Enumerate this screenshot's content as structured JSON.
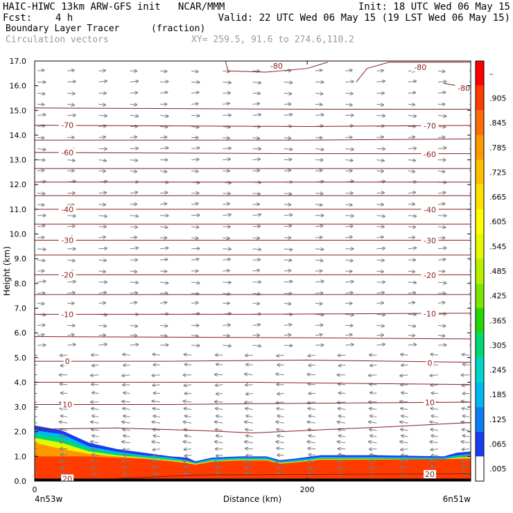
{
  "header": {
    "line1_left": "HAIC-HIWC 13km ARW-GFS init   NCAR/MMM",
    "line1_right": "Init: 18 UTC Wed 06 May 15",
    "line2_left": "Fcst:    4 h",
    "line2_right": "Valid: 22 UTC Wed 06 May 15 (19 LST Wed 06 May 15)",
    "field_name": "Boundary Layer Tracer",
    "field_units": "(fraction)",
    "vector_label": "Circulation vectors",
    "xy_label": "XY= 259.5, 91.6 to 274.6,110.2"
  },
  "colors": {
    "contour": "#8b1a1a",
    "vector": "#7a7a7a",
    "frame": "#000000",
    "grid": "#e6e6e6"
  },
  "chart_data": {
    "type": "heatmap",
    "ylabel": "Height (km)",
    "xlabel": "Distance (km)",
    "x_left_label": "4n53w",
    "x_right_label": "6n51w",
    "ylim": [
      0,
      17
    ],
    "yticks": [
      "0.0",
      "1.0",
      "2.0",
      "3.0",
      "4.0",
      "5.0",
      "6.0",
      "7.0",
      "8.0",
      "9.0",
      "10.0",
      "11.0",
      "12.0",
      "13.0",
      "14.0",
      "15.0",
      "16.0",
      "17.0"
    ],
    "xlim": [
      0,
      320
    ],
    "xticks": [
      {
        "value": 0,
        "label": "0"
      },
      {
        "value": 200,
        "label": "200"
      }
    ],
    "colorbar": {
      "labels": [
        ".005",
        ".065",
        ".125",
        ".185",
        ".245",
        ".305",
        ".365",
        ".425",
        ".485",
        ".545",
        ".605",
        ".665",
        ".725",
        ".785",
        ".845",
        ".905",
        "–"
      ],
      "colors": [
        "#ffffff",
        "#1a3cf0",
        "#0a7ef5",
        "#00b7f0",
        "#00d6c8",
        "#00d873",
        "#22d800",
        "#7de600",
        "#b8f000",
        "#e6f800",
        "#ffff00",
        "#ffe000",
        "#ffc000",
        "#ff9800",
        "#ff6e00",
        "#ff3c00",
        "#ff0000"
      ]
    },
    "tracer_layers": [
      {
        "level": 0.065,
        "top": [
          [
            0,
            2.25
          ],
          [
            20,
            2.05
          ],
          [
            40,
            1.55
          ],
          [
            60,
            1.3
          ],
          [
            80,
            1.15
          ],
          [
            100,
            1.0
          ],
          [
            112,
            0.95
          ],
          [
            118,
            0.8
          ],
          [
            130,
            0.95
          ],
          [
            150,
            1.0
          ],
          [
            170,
            1.0
          ],
          [
            180,
            0.85
          ],
          [
            190,
            0.9
          ],
          [
            210,
            1.05
          ],
          [
            250,
            1.05
          ],
          [
            300,
            1.0
          ],
          [
            310,
            1.15
          ],
          [
            330,
            1.25
          ]
        ]
      },
      {
        "level": 0.185,
        "top": [
          [
            0,
            2.05
          ],
          [
            20,
            1.9
          ],
          [
            40,
            1.4
          ],
          [
            60,
            1.2
          ],
          [
            80,
            1.05
          ],
          [
            100,
            0.95
          ],
          [
            112,
            0.85
          ],
          [
            118,
            0.75
          ],
          [
            130,
            0.9
          ],
          [
            150,
            0.95
          ],
          [
            170,
            0.95
          ],
          [
            180,
            0.8
          ],
          [
            190,
            0.85
          ],
          [
            210,
            0.98
          ],
          [
            250,
            0.98
          ],
          [
            300,
            0.95
          ],
          [
            310,
            1.05
          ],
          [
            330,
            1.15
          ]
        ]
      },
      {
        "level": 0.305,
        "top": [
          [
            0,
            1.9
          ],
          [
            20,
            1.75
          ],
          [
            40,
            1.3
          ],
          [
            60,
            1.12
          ],
          [
            80,
            1.0
          ],
          [
            100,
            0.9
          ],
          [
            112,
            0.8
          ],
          [
            118,
            0.72
          ],
          [
            130,
            0.85
          ],
          [
            150,
            0.9
          ],
          [
            170,
            0.9
          ],
          [
            180,
            0.76
          ],
          [
            190,
            0.8
          ],
          [
            210,
            0.93
          ],
          [
            250,
            0.93
          ],
          [
            300,
            0.9
          ],
          [
            310,
            1.0
          ],
          [
            330,
            1.08
          ]
        ]
      },
      {
        "level": 0.545,
        "top": [
          [
            0,
            1.75
          ],
          [
            20,
            1.55
          ],
          [
            40,
            1.2
          ],
          [
            60,
            1.05
          ],
          [
            80,
            0.95
          ],
          [
            100,
            0.85
          ],
          [
            112,
            0.78
          ],
          [
            118,
            0.7
          ],
          [
            130,
            0.82
          ],
          [
            150,
            0.87
          ],
          [
            170,
            0.87
          ],
          [
            180,
            0.74
          ],
          [
            190,
            0.78
          ],
          [
            210,
            0.9
          ],
          [
            250,
            0.9
          ],
          [
            300,
            0.88
          ],
          [
            310,
            0.95
          ],
          [
            330,
            1.02
          ]
        ]
      },
      {
        "level": 0.785,
        "top": [
          [
            0,
            1.55
          ],
          [
            20,
            1.3
          ],
          [
            40,
            1.1
          ],
          [
            60,
            1.0
          ],
          [
            80,
            0.92
          ],
          [
            100,
            0.82
          ],
          [
            112,
            0.74
          ],
          [
            118,
            0.68
          ],
          [
            130,
            0.8
          ],
          [
            150,
            0.85
          ],
          [
            170,
            0.85
          ],
          [
            180,
            0.72
          ],
          [
            190,
            0.76
          ],
          [
            210,
            0.88
          ],
          [
            250,
            0.88
          ],
          [
            300,
            0.86
          ],
          [
            310,
            0.92
          ],
          [
            330,
            0.98
          ]
        ]
      },
      {
        "level": 0.905,
        "top": [
          [
            0,
            1.0
          ],
          [
            40,
            1.0
          ],
          [
            80,
            0.9
          ],
          [
            100,
            0.8
          ],
          [
            112,
            0.72
          ],
          [
            118,
            0.66
          ],
          [
            130,
            0.78
          ],
          [
            150,
            0.83
          ],
          [
            170,
            0.83
          ],
          [
            180,
            0.7
          ],
          [
            190,
            0.74
          ],
          [
            210,
            0.86
          ],
          [
            330,
            0.9
          ]
        ]
      }
    ],
    "terrain_km": 0.1,
    "contour_interval_C": 10,
    "contours": [
      {
        "label": "20",
        "pts": [
          [
            0,
            0.1
          ],
          [
            60,
            0.1
          ],
          [
            120,
            0.25
          ],
          [
            330,
            0.3
          ]
        ]
      },
      {
        "label": "",
        "pts": [
          [
            0,
            2.1
          ],
          [
            60,
            2.15
          ],
          [
            120,
            2.05
          ],
          [
            160,
            1.95
          ],
          [
            200,
            2.05
          ],
          [
            260,
            2.2
          ],
          [
            330,
            2.4
          ]
        ]
      },
      {
        "label": "10",
        "pts": [
          [
            0,
            3.1
          ],
          [
            100,
            3.1
          ],
          [
            200,
            3.15
          ],
          [
            330,
            3.2
          ]
        ]
      },
      {
        "label": "",
        "pts": [
          [
            0,
            4.0
          ],
          [
            160,
            4.0
          ],
          [
            330,
            3.9
          ]
        ]
      },
      {
        "label": "0",
        "pts": [
          [
            0,
            4.85
          ],
          [
            100,
            4.85
          ],
          [
            200,
            4.9
          ],
          [
            330,
            4.8
          ]
        ]
      },
      {
        "label": "",
        "pts": [
          [
            0,
            5.85
          ],
          [
            200,
            5.8
          ],
          [
            330,
            5.75
          ]
        ]
      },
      {
        "label": "-10",
        "pts": [
          [
            0,
            6.75
          ],
          [
            160,
            6.75
          ],
          [
            330,
            6.8
          ]
        ]
      },
      {
        "label": "",
        "pts": [
          [
            0,
            7.55
          ],
          [
            200,
            7.55
          ],
          [
            330,
            7.55
          ]
        ]
      },
      {
        "label": "-20",
        "pts": [
          [
            0,
            8.35
          ],
          [
            200,
            8.35
          ],
          [
            330,
            8.35
          ]
        ]
      },
      {
        "label": "",
        "pts": [
          [
            0,
            9.15
          ],
          [
            200,
            9.15
          ],
          [
            330,
            9.15
          ]
        ]
      },
      {
        "label": "-30",
        "pts": [
          [
            0,
            9.75
          ],
          [
            200,
            9.75
          ],
          [
            330,
            9.75
          ]
        ]
      },
      {
        "label": "",
        "pts": [
          [
            0,
            10.4
          ],
          [
            200,
            10.4
          ],
          [
            330,
            10.4
          ]
        ]
      },
      {
        "label": "-40",
        "pts": [
          [
            0,
            11.0
          ],
          [
            200,
            11.0
          ],
          [
            330,
            11.0
          ]
        ]
      },
      {
        "label": "",
        "pts": [
          [
            0,
            11.55
          ],
          [
            200,
            11.55
          ],
          [
            330,
            11.55
          ]
        ]
      },
      {
        "label": "",
        "pts": [
          [
            0,
            12.1
          ],
          [
            200,
            12.1
          ],
          [
            330,
            12.1
          ]
        ]
      },
      {
        "label": "",
        "pts": [
          [
            0,
            12.65
          ],
          [
            200,
            12.65
          ],
          [
            330,
            12.65
          ]
        ]
      },
      {
        "label": "-60",
        "pts": [
          [
            0,
            13.3
          ],
          [
            200,
            13.25
          ],
          [
            330,
            13.25
          ]
        ]
      },
      {
        "label": "",
        "pts": [
          [
            0,
            13.8
          ],
          [
            200,
            13.8
          ],
          [
            330,
            13.85
          ]
        ]
      },
      {
        "label": "-70",
        "pts": [
          [
            0,
            14.4
          ],
          [
            200,
            14.35
          ],
          [
            330,
            14.4
          ]
        ]
      },
      {
        "label": "",
        "pts": [
          [
            0,
            15.1
          ],
          [
            200,
            15.05
          ],
          [
            330,
            15.05
          ]
        ]
      },
      {
        "label": "-80",
        "pts": [
          [
            236,
            16.15
          ],
          [
            244,
            16.7
          ],
          [
            260,
            16.95
          ],
          [
            300,
            16.95
          ],
          [
            330,
            16.95
          ]
        ]
      },
      {
        "label": "-80",
        "pts": [
          [
            300,
            16.1
          ],
          [
            315,
            15.95
          ],
          [
            330,
            15.95
          ]
        ]
      },
      {
        "label": "-80",
        "pts": [
          [
            140,
            17.0
          ],
          [
            142,
            16.6
          ],
          [
            170,
            16.55
          ],
          [
            200,
            16.7
          ],
          [
            215,
            16.95
          ]
        ]
      }
    ],
    "vector_rows_km": [
      0.3,
      0.55,
      0.8,
      1.05,
      1.3,
      1.55,
      1.8,
      2.05,
      2.35,
      2.6,
      2.9,
      3.2,
      3.55,
      3.9,
      4.3,
      4.7,
      5.1,
      5.5,
      5.9,
      6.3,
      6.75,
      7.2,
      7.6,
      8.05,
      8.5,
      8.95,
      9.4,
      9.85,
      10.3,
      10.75,
      11.2,
      11.65,
      12.1,
      12.55,
      13.0,
      13.45,
      13.9,
      14.35,
      14.8,
      15.25,
      15.7,
      16.15,
      16.6
    ],
    "vector_cols_km": [
      0,
      22,
      45,
      68,
      90,
      113,
      136,
      158,
      181,
      204,
      226,
      249,
      272,
      294,
      317
    ]
  }
}
